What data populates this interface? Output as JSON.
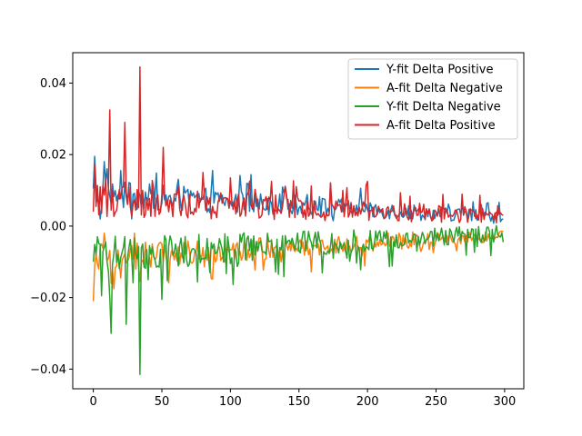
{
  "chart_data": {
    "type": "line",
    "title": "",
    "xlabel": "",
    "ylabel": "",
    "xlim": [
      -15,
      314
    ],
    "ylim": [
      -0.0455,
      0.0485
    ],
    "xticks": [
      0,
      50,
      100,
      150,
      200,
      250,
      300
    ],
    "xtick_labels": [
      "0",
      "50",
      "100",
      "150",
      "200",
      "250",
      "300"
    ],
    "yticks": [
      -0.04,
      -0.02,
      0.0,
      0.02,
      0.04
    ],
    "ytick_labels": [
      "−0.04",
      "−0.02",
      "0.00",
      "0.02",
      "0.04"
    ],
    "grid": false,
    "legend": "top-right",
    "n_points": 300,
    "series": [
      {
        "name": "Y-fit Delta Positive",
        "color": "#1f77b4",
        "key_points": [
          [
            0,
            0.0105
          ],
          [
            1,
            0.0195
          ],
          [
            2,
            0.0105
          ],
          [
            5,
            0.002
          ],
          [
            10,
            0.016
          ],
          [
            20,
            0.0155
          ],
          [
            28,
            0.002
          ],
          [
            34,
            0.0085
          ],
          [
            40,
            0.0075
          ],
          [
            50,
            0.0065
          ],
          [
            60,
            0.007
          ],
          [
            80,
            0.0075
          ],
          [
            100,
            0.007
          ],
          [
            130,
            0.0065
          ],
          [
            150,
            0.005
          ],
          [
            175,
            0.0015
          ],
          [
            200,
            0.0045
          ],
          [
            250,
            0.0035
          ],
          [
            299,
            0.002
          ]
        ],
        "baseline_start": 0.009,
        "baseline_end": 0.0025,
        "noise": 0.004
      },
      {
        "name": "A-fit Delta Negative",
        "color": "#ff7f0e",
        "key_points": [
          [
            0,
            -0.021
          ],
          [
            1,
            -0.011
          ],
          [
            3,
            -0.0105
          ],
          [
            8,
            -0.002
          ],
          [
            15,
            -0.0175
          ],
          [
            20,
            -0.0145
          ],
          [
            30,
            -0.002
          ],
          [
            34,
            -0.0155
          ],
          [
            40,
            -0.0125
          ],
          [
            50,
            -0.005
          ],
          [
            60,
            -0.0075
          ],
          [
            80,
            -0.006
          ],
          [
            100,
            -0.0065
          ],
          [
            120,
            -0.005
          ],
          [
            150,
            -0.0045
          ],
          [
            175,
            -0.008
          ],
          [
            200,
            -0.0045
          ],
          [
            250,
            -0.004
          ],
          [
            299,
            -0.0015
          ]
        ],
        "baseline_start": -0.009,
        "baseline_end": -0.0025,
        "noise": 0.004
      },
      {
        "name": "Y-fit Delta Negative",
        "color": "#2ca02c",
        "key_points": [
          [
            0,
            -0.01
          ],
          [
            3,
            -0.003
          ],
          [
            6,
            -0.0195
          ],
          [
            13,
            -0.03
          ],
          [
            18,
            -0.008
          ],
          [
            24,
            -0.0275
          ],
          [
            34,
            -0.0415
          ],
          [
            36,
            -0.005
          ],
          [
            40,
            -0.015
          ],
          [
            50,
            -0.0205
          ],
          [
            60,
            -0.005
          ],
          [
            85,
            -0.013
          ],
          [
            100,
            -0.0105
          ],
          [
            120,
            -0.007
          ],
          [
            135,
            -0.0135
          ],
          [
            150,
            -0.007
          ],
          [
            175,
            -0.009
          ],
          [
            200,
            -0.006
          ],
          [
            250,
            -0.004
          ],
          [
            299,
            -0.0045
          ]
        ],
        "baseline_start": -0.008,
        "baseline_end": -0.002,
        "noise": 0.005
      },
      {
        "name": "A-fit Delta Positive",
        "color": "#d62728",
        "key_points": [
          [
            0,
            0.004
          ],
          [
            1,
            0.017
          ],
          [
            5,
            0.011
          ],
          [
            12,
            0.0325
          ],
          [
            23,
            0.029
          ],
          [
            34,
            0.0445
          ],
          [
            36,
            0.01
          ],
          [
            40,
            0.0045
          ],
          [
            51,
            0.022
          ],
          [
            55,
            0.004
          ],
          [
            60,
            0.009
          ],
          [
            80,
            0.015
          ],
          [
            100,
            0.0135
          ],
          [
            120,
            0.006
          ],
          [
            130,
            0.0125
          ],
          [
            150,
            0.007
          ],
          [
            175,
            0.0055
          ],
          [
            200,
            0.0125
          ],
          [
            250,
            0.004
          ],
          [
            299,
            0.003
          ]
        ],
        "baseline_start": 0.007,
        "baseline_end": 0.0028,
        "noise": 0.0045
      }
    ]
  }
}
